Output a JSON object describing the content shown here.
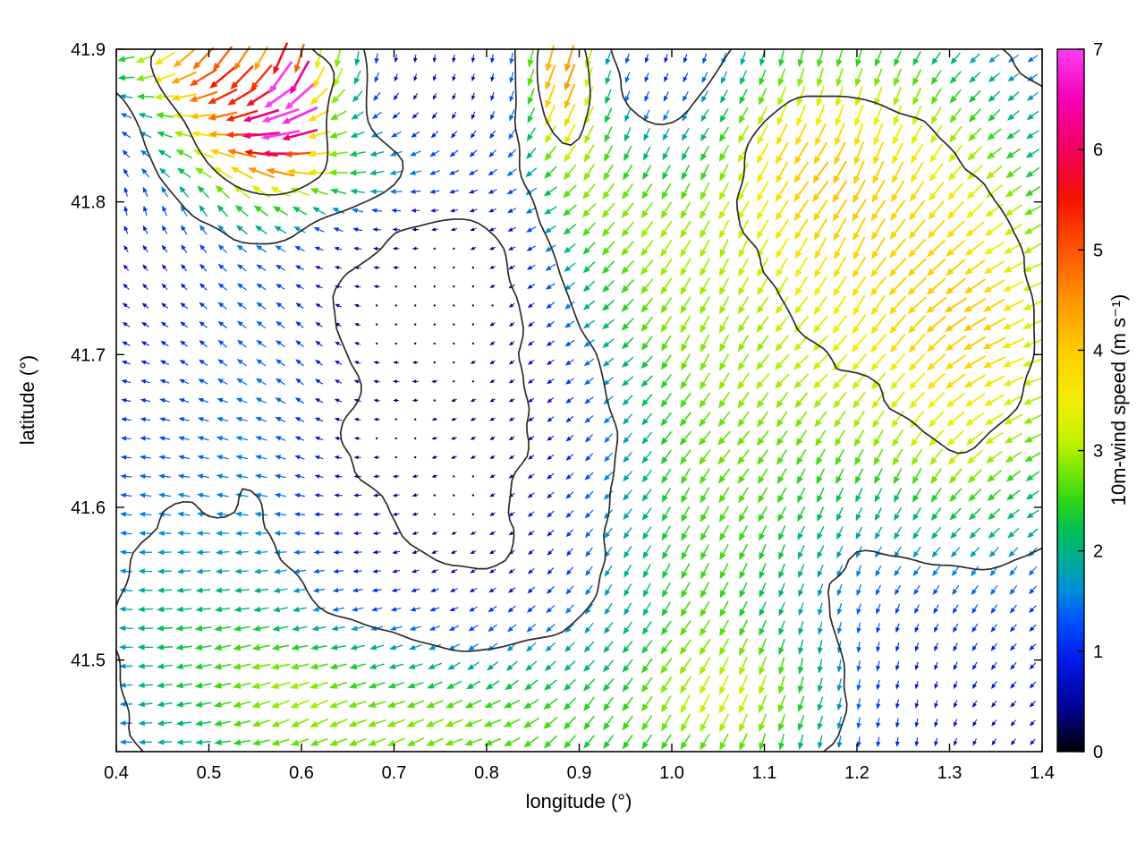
{
  "figure": {
    "background": "#ffffff",
    "frame_color": "#000000"
  },
  "chart_data": {
    "type": "quiver",
    "title": "",
    "xlabel": "longitude (°)",
    "ylabel": "latitude (°)",
    "xlim": [
      0.4,
      1.4
    ],
    "ylim": [
      41.44,
      41.9
    ],
    "x_ticks": [
      {
        "value": 0.4,
        "label": "0.4"
      },
      {
        "value": 0.5,
        "label": "0.5"
      },
      {
        "value": 0.6,
        "label": "0.6"
      },
      {
        "value": 0.7,
        "label": "0.7"
      },
      {
        "value": 0.8,
        "label": "0.8"
      },
      {
        "value": 0.9,
        "label": "0.9"
      },
      {
        "value": 1.0,
        "label": "1.0"
      },
      {
        "value": 1.1,
        "label": "1.1"
      },
      {
        "value": 1.2,
        "label": "1.2"
      },
      {
        "value": 1.3,
        "label": "1.3"
      },
      {
        "value": 1.4,
        "label": "1.4"
      }
    ],
    "y_ticks": [
      {
        "value": 41.5,
        "label": "41.5"
      },
      {
        "value": 41.6,
        "label": "41.6"
      },
      {
        "value": 41.7,
        "label": "41.7"
      },
      {
        "value": 41.8,
        "label": "41.8"
      },
      {
        "value": 41.9,
        "label": "41.9"
      }
    ],
    "colorbar": {
      "label": "10m-wind speed (m s⁻¹)",
      "min": 0,
      "max": 7,
      "ticks": [
        0,
        1,
        2,
        3,
        4,
        5,
        6,
        7
      ],
      "stops": [
        [
          0.0,
          "#000000"
        ],
        [
          0.4,
          "#00008c"
        ],
        [
          0.9,
          "#0018e8"
        ],
        [
          1.3,
          "#0050ff"
        ],
        [
          1.6,
          "#008cdc"
        ],
        [
          1.9,
          "#00ab96"
        ],
        [
          2.2,
          "#00bf58"
        ],
        [
          2.5,
          "#2ed616"
        ],
        [
          2.8,
          "#78e800"
        ],
        [
          3.1,
          "#c3f200"
        ],
        [
          3.5,
          "#f4ee00"
        ],
        [
          4.0,
          "#ffcc00"
        ],
        [
          4.5,
          "#ff9400"
        ],
        [
          5.0,
          "#ff5400"
        ],
        [
          5.5,
          "#f51400"
        ],
        [
          6.0,
          "#f2005c"
        ],
        [
          6.5,
          "#f500b4"
        ],
        [
          7.0,
          "#ff3cf5"
        ]
      ]
    },
    "grid": {
      "nx": 48,
      "ny": 37
    },
    "arrows": {
      "min_len": 5,
      "len_per_speed": 6,
      "max_len": 44,
      "dot_threshold": 0.3
    },
    "speed_field": {
      "base": 0.75,
      "noise": 0.22,
      "bumps": [
        [
          0.585,
          41.872,
          4.5,
          0.014,
          0.022
        ],
        [
          0.572,
          41.845,
          2.6,
          0.03,
          0.02
        ],
        [
          0.53,
          41.883,
          2.4,
          0.045,
          0.022
        ],
        [
          0.46,
          41.895,
          2.2,
          0.06,
          0.022
        ],
        [
          0.5,
          41.845,
          1.8,
          0.05,
          0.03
        ],
        [
          0.63,
          41.885,
          2.0,
          0.03,
          0.025
        ],
        [
          0.6,
          41.82,
          1.6,
          0.06,
          0.03
        ],
        [
          0.7,
          41.82,
          1.0,
          0.09,
          0.022
        ],
        [
          0.88,
          41.895,
          2.6,
          0.025,
          0.03
        ],
        [
          0.89,
          41.85,
          1.7,
          0.04,
          0.05
        ],
        [
          1.16,
          41.84,
          2.2,
          0.1,
          0.06
        ],
        [
          1.22,
          41.72,
          2.0,
          0.13,
          0.1
        ],
        [
          1.35,
          41.7,
          1.8,
          0.08,
          0.12
        ],
        [
          0.95,
          41.77,
          1.3,
          0.06,
          0.05
        ],
        [
          1.02,
          41.6,
          1.6,
          0.1,
          0.12
        ],
        [
          1.08,
          41.47,
          1.4,
          0.08,
          0.04
        ],
        [
          0.78,
          41.455,
          1.9,
          0.13,
          0.04
        ],
        [
          0.58,
          41.47,
          1.3,
          0.1,
          0.05
        ],
        [
          0.44,
          41.54,
          1.0,
          0.05,
          0.08
        ],
        [
          0.55,
          41.65,
          0.9,
          0.05,
          0.16
        ],
        [
          0.8,
          41.65,
          -0.55,
          0.13,
          0.09
        ],
        [
          1.32,
          41.52,
          -0.45,
          0.1,
          0.08
        ],
        [
          0.72,
          41.78,
          -0.4,
          0.12,
          0.055
        ],
        [
          1.0,
          41.88,
          -0.45,
          0.05,
          0.035
        ]
      ]
    },
    "direction_field": {
      "lon_nodes": [
        0.4,
        0.6,
        0.8,
        1.0,
        1.2,
        1.4
      ],
      "lat_nodes": [
        41.44,
        41.56,
        41.68,
        41.8,
        41.9
      ],
      "angles_deg": [
        [
          182,
          196,
          207,
          238,
          262,
          235
        ],
        [
          175,
          185,
          212,
          240,
          248,
          222
        ],
        [
          165,
          140,
          215,
          235,
          232,
          205
        ],
        [
          95,
          150,
          205,
          235,
          245,
          210
        ],
        [
          195,
          265,
          268,
          250,
          258,
          215
        ]
      ],
      "noise_deg": 14
    },
    "contours": {
      "levels": [
        0.55,
        1.6,
        3.2
      ],
      "color": "#2b2b2b"
    }
  }
}
